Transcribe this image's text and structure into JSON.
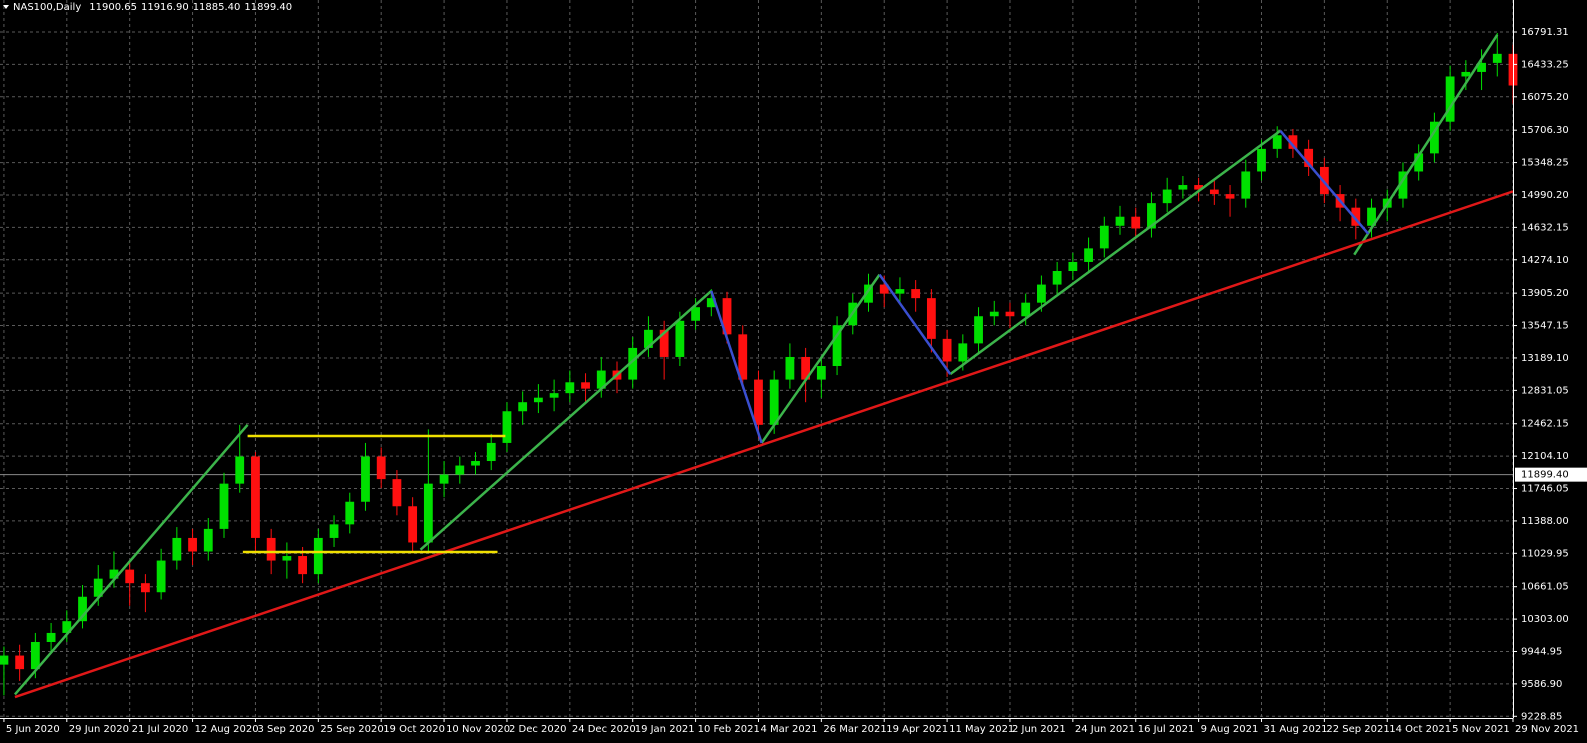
{
  "chart_data": {
    "type": "candlestick",
    "title": "NAS100,Daily",
    "header_values": [
      11900.65,
      {
        "value": 11916.9,
        "label": "11916.90"
      },
      {
        "value": 11885.4,
        "label": "11885.40"
      },
      {
        "value": 11899.4,
        "label": "11899.40"
      }
    ],
    "price_line": {
      "value": 11899.4,
      "label": "11899.40"
    },
    "grid": true,
    "up_color": "#00e000",
    "down_color": "#ff1010",
    "xlim": [
      -0.25,
      96
    ],
    "ylim": [
      9210,
      17145
    ],
    "xticks": [
      {
        "value": 0,
        "label": "5 Jun 2020"
      },
      {
        "value": 4,
        "label": "29 Jun 2020"
      },
      {
        "value": 8,
        "label": "21 Jul 2020"
      },
      {
        "value": 12,
        "label": "12 Aug 2020"
      },
      {
        "value": 16,
        "label": "3 Sep 2020"
      },
      {
        "value": 20,
        "label": "25 Sep 2020"
      },
      {
        "value": 24,
        "label": "19 Oct 2020"
      },
      {
        "value": 28,
        "label": "10 Nov 2020"
      },
      {
        "value": 32,
        "label": "2 Dec 2020"
      },
      {
        "value": 36,
        "label": "24 Dec 2020"
      },
      {
        "value": 40,
        "label": "19 Jan 2021"
      },
      {
        "value": 44,
        "label": "10 Feb 2021"
      },
      {
        "value": 48,
        "label": "4 Mar 2021"
      },
      {
        "value": 52,
        "label": "26 Mar 2021"
      },
      {
        "value": 56,
        "label": "19 Apr 2021"
      },
      {
        "value": 60,
        "label": "11 May 2021"
      },
      {
        "value": 64,
        "label": "2 Jun 2021"
      },
      {
        "value": 68,
        "label": "24 Jun 2021"
      },
      {
        "value": 72,
        "label": "16 Jul 2021"
      },
      {
        "value": 76,
        "label": "9 Aug 2021"
      },
      {
        "value": 80,
        "label": "31 Aug 2021"
      },
      {
        "value": 84,
        "label": "22 Sep 2021"
      },
      {
        "value": 88,
        "label": "14 Oct 2021"
      },
      {
        "value": 92,
        "label": "5 Nov 2021"
      },
      {
        "value": 96,
        "label": "29 Nov 2021"
      }
    ],
    "yticks": [
      16791.31,
      {
        "value": 16433.25,
        "label": "16433.25"
      },
      {
        "value": 16075.2,
        "label": "16075.20"
      },
      {
        "value": 15706.3,
        "label": "15706.30"
      },
      {
        "value": 15348.25,
        "label": "15348.25"
      },
      {
        "value": 14990.2,
        "label": "14990.20"
      },
      {
        "value": 14632.15,
        "label": "14632.15"
      },
      {
        "value": 14274.1,
        "label": "14274.10"
      },
      {
        "value": 13905.2,
        "label": "13905.20"
      },
      {
        "value": 13547.15,
        "label": "13547.15"
      },
      {
        "value": 13189.1,
        "label": "13189.10"
      },
      {
        "value": 12831.05,
        "label": "12831.05"
      },
      {
        "value": 12462.15,
        "label": "12462.15"
      },
      {
        "value": 12104.1,
        "label": "12104.10"
      },
      {
        "value": 11746.05,
        "label": "11746.05"
      },
      {
        "value": 11388,
        "label": "11388.00"
      },
      {
        "value": 11029.95,
        "label": "11029.95"
      },
      {
        "value": 10661.05,
        "label": "10661.05"
      },
      {
        "value": 10303,
        "label": "10303.00"
      },
      {
        "value": 9944.95,
        "label": "9944.95"
      },
      {
        "value": 9586.9,
        "label": "9586.90"
      },
      9228.85
    ],
    "series": [
      {
        "open": [
          9800,
          9900,
          9750,
          10050,
          10150,
          10280,
          10550,
          10750,
          10850,
          10700,
          10600,
          10950,
          11200,
          11050,
          11300,
          11800,
          12100,
          11200,
          10950,
          11000,
          10800,
          11200,
          11350,
          11600,
          12100,
          11850,
          11550,
          11150,
          11800,
          11900,
          12000,
          12050,
          12250,
          12600,
          12700,
          12750,
          12800,
          12920,
          12850,
          13050,
          12950,
          13300,
          13500,
          13200,
          13600,
          13750,
          13850,
          13450,
          12950,
          12450,
          12950,
          13200,
          12950,
          13100,
          13550,
          13800,
          14000,
          13900,
          13950,
          13850,
          13400,
          13150,
          13350,
          13650,
          13700,
          13650,
          13800,
          14000,
          14150,
          14250,
          14400,
          14650,
          14750,
          14620,
          14900,
          15050,
          15100,
          15050,
          15000,
          14950,
          15250,
          15500,
          15650,
          15500,
          15300,
          15000,
          14850,
          14650,
          14850,
          14950,
          15250,
          15450,
          15800,
          16300,
          16350,
          16450,
          16550
        ],
        "high": [
          10000,
          10020,
          10150,
          10260,
          10400,
          10680,
          10900,
          11050,
          10950,
          10800,
          11080,
          11320,
          11300,
          11420,
          11920,
          12450,
          12150,
          11300,
          11150,
          11100,
          11300,
          11450,
          11700,
          12250,
          12200,
          11950,
          11650,
          12400,
          12050,
          12100,
          12150,
          12350,
          12700,
          12820,
          12900,
          12950,
          13050,
          13020,
          13200,
          13150,
          13420,
          13650,
          13600,
          13700,
          13850,
          13950,
          13920,
          13550,
          13050,
          13050,
          13350,
          13300,
          13200,
          13650,
          13900,
          14120,
          14100,
          14080,
          14050,
          13950,
          13500,
          13450,
          13750,
          13820,
          13800,
          13900,
          14100,
          14250,
          14350,
          14520,
          14750,
          14870,
          14850,
          15020,
          15180,
          15200,
          15180,
          15150,
          15100,
          15380,
          15600,
          15750,
          15720,
          15600,
          15400,
          15100,
          14950,
          14950,
          15050,
          15350,
          15550,
          15900,
          16420,
          16480,
          16600,
          16780,
          16650
        ],
        "low": [
          9460,
          9620,
          9650,
          9950,
          10050,
          10200,
          10450,
          10650,
          10450,
          10380,
          10520,
          10850,
          10900,
          10950,
          11200,
          11700,
          11050,
          10800,
          10750,
          10700,
          10700,
          11100,
          11250,
          11500,
          11750,
          11450,
          11050,
          11050,
          11650,
          11800,
          11900,
          11950,
          12150,
          12450,
          12580,
          12600,
          12700,
          12700,
          12750,
          12800,
          12850,
          13200,
          12950,
          13100,
          13500,
          13650,
          13350,
          12850,
          12300,
          12350,
          12850,
          12700,
          12750,
          13000,
          13450,
          13700,
          13750,
          13780,
          13700,
          13250,
          12980,
          13050,
          13250,
          13550,
          13520,
          13550,
          13700,
          13900,
          14050,
          14150,
          14300,
          14550,
          14500,
          14520,
          14800,
          14950,
          14920,
          14880,
          14750,
          14850,
          15150,
          15400,
          15400,
          15200,
          14900,
          14700,
          14500,
          14520,
          14700,
          14850,
          15150,
          15350,
          15700,
          16150,
          16150,
          16300,
          16000
        ],
        "close": [
          9900,
          9750,
          10050,
          10150,
          10280,
          10550,
          10750,
          10850,
          10700,
          10600,
          10950,
          11200,
          11050,
          11300,
          11800,
          12100,
          11200,
          10950,
          11000,
          10800,
          11200,
          11350,
          11600,
          12100,
          11850,
          11550,
          11150,
          11800,
          11900,
          12000,
          12050,
          12250,
          12600,
          12700,
          12750,
          12800,
          12920,
          12850,
          13050,
          12950,
          13300,
          13500,
          13200,
          13600,
          13750,
          13850,
          13450,
          12950,
          12450,
          12950,
          13200,
          12950,
          13100,
          13550,
          13800,
          14000,
          13900,
          13950,
          13850,
          13400,
          13150,
          13350,
          13650,
          13700,
          13650,
          13800,
          14000,
          14150,
          14250,
          14400,
          14650,
          14750,
          14620,
          14900,
          15050,
          15100,
          15050,
          15000,
          14950,
          15250,
          15500,
          15650,
          15500,
          15300,
          15000,
          14850,
          14650,
          14850,
          14950,
          15250,
          15450,
          15800,
          16300,
          16350,
          16450,
          16550,
          16200
        ]
      }
    ],
    "trendlines": [
      {
        "color": "#3cb44b",
        "x": [
          0.7,
          15.5
        ],
        "y": [
          9470,
          12450
        ]
      },
      {
        "color": "#3cb44b",
        "x": [
          26.5,
          45.0
        ],
        "y": [
          11070,
          13930
        ]
      },
      {
        "color": "#3cb44b",
        "x": [
          48.2,
          55.7
        ],
        "y": [
          12250,
          14110
        ]
      },
      {
        "color": "#3cb44b",
        "x": [
          60.2,
          81.2
        ],
        "y": [
          13010,
          15700
        ]
      },
      {
        "color": "#3cb44b",
        "x": [
          85.9,
          95.0
        ],
        "y": [
          14330,
          16760
        ]
      },
      {
        "color": "#3a4fd0",
        "x": [
          45.0,
          48.2
        ],
        "y": [
          13930,
          12250
        ]
      },
      {
        "color": "#3a4fd0",
        "x": [
          55.7,
          60.2
        ],
        "y": [
          14110,
          13010
        ]
      },
      {
        "color": "#3a4fd0",
        "x": [
          81.2,
          86.8
        ],
        "y": [
          15700,
          14560
        ]
      },
      {
        "color": "#e01818",
        "x": [
          0.7,
          96
        ],
        "y": [
          9442,
          15030
        ]
      },
      {
        "color": "#f0e000",
        "x": [
          15.5,
          31.9
        ],
        "y": [
          12327,
          12327
        ]
      },
      {
        "color": "#f0e000",
        "x": [
          15.2,
          31.4
        ],
        "y": [
          11045,
          11045
        ]
      }
    ]
  }
}
